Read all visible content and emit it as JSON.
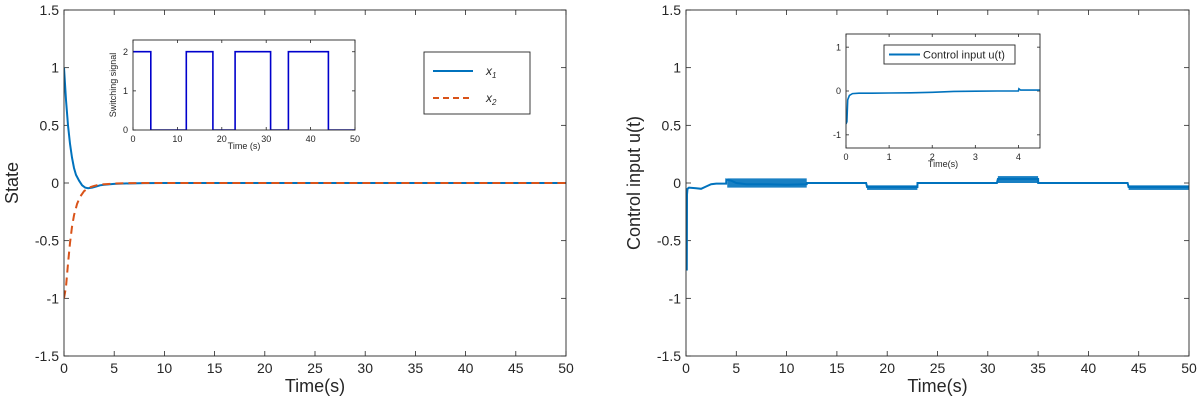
{
  "chart_data": [
    {
      "type": "line",
      "xlabel": "Time(s)",
      "ylabel": "State",
      "xlim": [
        0,
        50
      ],
      "ylim": [
        -1.5,
        1.5
      ],
      "xticks": [
        0,
        5,
        10,
        15,
        20,
        25,
        30,
        35,
        40,
        45,
        50
      ],
      "xtick_labels": [
        "0",
        "5",
        "10",
        "15",
        "20",
        "25",
        "30",
        "35",
        "40",
        "45",
        "50"
      ],
      "yticks": [
        -1.5,
        -1,
        -0.5,
        0,
        0.5,
        1,
        1.5
      ],
      "ytick_labels": [
        "-1.5",
        "-1",
        "-0.5",
        "0",
        "0.5",
        "1",
        "1.5"
      ],
      "grid": false,
      "legend_position": "top-right",
      "series": [
        {
          "name": "x1",
          "legend_base": "x",
          "legend_sub": "1",
          "color": "#0072BD",
          "dash": "solid",
          "x": [
            0,
            0.2,
            0.4,
            0.6,
            0.8,
            1.0,
            1.2,
            1.5,
            1.8,
            2.1,
            2.4,
            2.8,
            3.2,
            3.6,
            4.0,
            5.0,
            6.0,
            8.0,
            10.0,
            15.0,
            50.0
          ],
          "y": [
            1.0,
            0.72,
            0.5,
            0.34,
            0.22,
            0.13,
            0.07,
            0.02,
            -0.02,
            -0.04,
            -0.045,
            -0.04,
            -0.03,
            -0.02,
            -0.015,
            -0.008,
            -0.004,
            -0.001,
            0,
            0,
            0
          ]
        },
        {
          "name": "x2",
          "legend_base": "x",
          "legend_sub": "2",
          "color": "#D95319",
          "dash": "dashed",
          "x": [
            0,
            0.2,
            0.4,
            0.6,
            0.8,
            1.0,
            1.3,
            1.6,
            2.0,
            2.5,
            3.0,
            3.5,
            4.0,
            5.0,
            6.0,
            8.0,
            10.0,
            15.0,
            50.0
          ],
          "y": [
            -1.0,
            -0.9,
            -0.7,
            -0.52,
            -0.38,
            -0.28,
            -0.18,
            -0.12,
            -0.07,
            -0.04,
            -0.025,
            -0.015,
            -0.01,
            -0.005,
            -0.002,
            0,
            0,
            0,
            0
          ]
        }
      ],
      "inset": {
        "type": "line",
        "xlabel": "Time (s)",
        "ylabel": "Switching signal",
        "xlim": [
          0,
          50
        ],
        "ylim": [
          0,
          2.3
        ],
        "xticks": [
          0,
          10,
          20,
          30,
          40,
          50
        ],
        "xtick_labels": [
          "0",
          "10",
          "20",
          "30",
          "40",
          "50"
        ],
        "yticks": [
          0,
          1,
          2
        ],
        "ytick_labels": [
          "0",
          "1",
          "2"
        ],
        "series": [
          {
            "color": "#0000CC",
            "dash": "solid",
            "x": [
              0,
              4,
              4,
              12,
              12,
              18,
              18,
              23,
              23,
              31,
              31,
              35,
              35,
              44,
              44,
              50
            ],
            "y": [
              2,
              2,
              0,
              0,
              2,
              2,
              0,
              0,
              2,
              2,
              0,
              0,
              2,
              2,
              0,
              0
            ]
          }
        ]
      }
    },
    {
      "type": "line",
      "xlabel": "Time(s)",
      "ylabel": "Control input u(t)",
      "xlim": [
        0,
        50
      ],
      "ylim": [
        -1.5,
        1.5
      ],
      "xticks": [
        0,
        5,
        10,
        15,
        20,
        25,
        30,
        35,
        40,
        45,
        50
      ],
      "xtick_labels": [
        "0",
        "5",
        "10",
        "15",
        "20",
        "25",
        "30",
        "35",
        "40",
        "45",
        "50"
      ],
      "yticks": [
        -1.5,
        -1,
        -0.5,
        0,
        0.5,
        1,
        1.5
      ],
      "ytick_labels": [
        "-1.5",
        "-1",
        "-0.5",
        "0",
        "0.5",
        "1",
        "1.5"
      ],
      "grid": false,
      "series": [
        {
          "color": "#0072BD",
          "dash": "solid",
          "x": [
            0,
            0.08,
            0.1,
            0.15,
            0.3,
            1.0,
            1.5,
            2.0,
            2.5,
            3.0,
            4.0,
            4.01,
            4.5,
            5.0,
            6.0,
            8.0,
            10.0,
            12.0,
            12.01,
            15.0,
            17.9,
            18.0,
            20.0,
            23.0,
            23.01,
            26.0,
            30.9,
            31.0,
            33.0,
            35.0,
            35.01,
            40.0,
            43.9,
            44.0,
            47.0,
            50.0
          ],
          "y": [
            -0.75,
            -0.75,
            -0.1,
            -0.05,
            -0.04,
            -0.045,
            -0.05,
            -0.03,
            -0.01,
            -0.005,
            -0.005,
            0.03,
            0.02,
            0.0,
            -0.01,
            -0.01,
            -0.015,
            -0.01,
            0.0,
            0.0,
            0.0,
            -0.035,
            -0.035,
            -0.035,
            0.0,
            0.0,
            0.0,
            0.035,
            0.035,
            0.035,
            0.0,
            0.0,
            0.0,
            -0.035,
            -0.035,
            -0.035
          ]
        }
      ],
      "bands": [
        {
          "x0": 4.1,
          "x1": 12.0,
          "y0": -0.04,
          "y1": 0.04
        },
        {
          "x0": 18.0,
          "x1": 23.0,
          "y0": -0.06,
          "y1": -0.02
        },
        {
          "x0": 31.0,
          "x1": 35.0,
          "y0": 0.0,
          "y1": 0.06
        },
        {
          "x0": 44.0,
          "x1": 50.0,
          "y0": -0.06,
          "y1": -0.02
        }
      ],
      "inset": {
        "type": "line",
        "xlabel": "Time(s)",
        "xlim": [
          0,
          4.5
        ],
        "ylim": [
          -1.3,
          1.3
        ],
        "xticks": [
          0,
          1,
          2,
          3,
          4
        ],
        "xtick_labels": [
          "0",
          "1",
          "2",
          "3",
          "4"
        ],
        "yticks": [
          -1,
          0,
          1
        ],
        "ytick_labels": [
          "-1",
          "0",
          "1"
        ],
        "legend_position": "top-right",
        "series": [
          {
            "name": "Control input u(t)",
            "color": "#0072BD",
            "dash": "solid",
            "x": [
              0,
              0.02,
              0.04,
              0.08,
              0.15,
              0.3,
              0.6,
              1.0,
              1.5,
              2.0,
              2.5,
              3.0,
              3.5,
              4.0,
              4.01,
              4.05,
              4.5
            ],
            "y": [
              -0.75,
              -0.7,
              -0.2,
              -0.1,
              -0.06,
              -0.05,
              -0.05,
              -0.045,
              -0.04,
              -0.03,
              -0.01,
              -0.005,
              0.0,
              0.0,
              0.05,
              0.02,
              0.02
            ]
          }
        ]
      }
    }
  ]
}
